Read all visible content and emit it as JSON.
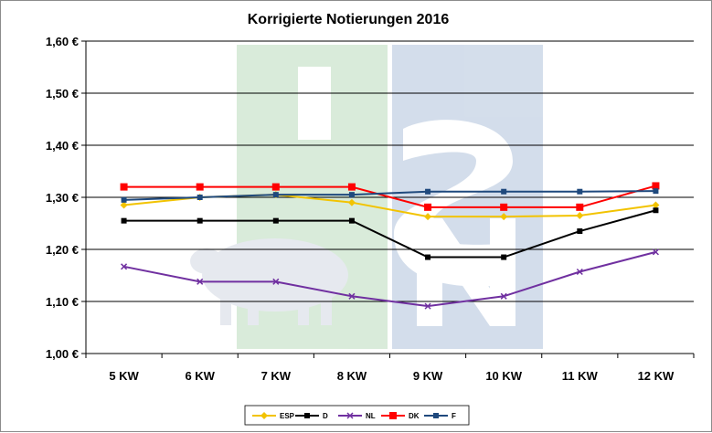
{
  "chart_data": {
    "type": "line",
    "title": "Korrigierte Notierungen 2016",
    "categories": [
      "5 KW",
      "6 KW",
      "7 KW",
      "8 KW",
      "9 KW",
      "10 KW",
      "11 KW",
      "12 KW"
    ],
    "ylim": [
      1.0,
      1.6
    ],
    "yticks": [
      1.0,
      1.1,
      1.2,
      1.3,
      1.4,
      1.5,
      1.6
    ],
    "ytick_labels": [
      "1,00 €",
      "1,10 €",
      "1,20 €",
      "1,30 €",
      "1,40 €",
      "1,50 €",
      "1,60 €"
    ],
    "grid": true,
    "legend_position": "bottom",
    "series": [
      {
        "name": "ESP",
        "color": "#f2c300",
        "marker": "diamond",
        "values": [
          1.285,
          1.3,
          1.305,
          1.29,
          1.263,
          1.263,
          1.265,
          1.285
        ]
      },
      {
        "name": "D",
        "color": "#000000",
        "marker": "square",
        "values": [
          1.255,
          1.255,
          1.255,
          1.255,
          1.185,
          1.185,
          1.235,
          1.275
        ]
      },
      {
        "name": "NL",
        "color": "#7030a0",
        "marker": "cross",
        "values": [
          1.167,
          1.138,
          1.138,
          1.11,
          1.091,
          1.11,
          1.157,
          1.195
        ]
      },
      {
        "name": "DK",
        "color": "#ff0000",
        "marker": "square",
        "values": [
          1.32,
          1.32,
          1.32,
          1.32,
          1.281,
          1.281,
          1.281,
          1.322
        ]
      },
      {
        "name": "F",
        "color": "#1f497d",
        "marker": "square",
        "values": [
          1.295,
          1.3,
          1.305,
          1.305,
          1.311,
          1.311,
          1.311,
          1.312
        ]
      }
    ]
  }
}
